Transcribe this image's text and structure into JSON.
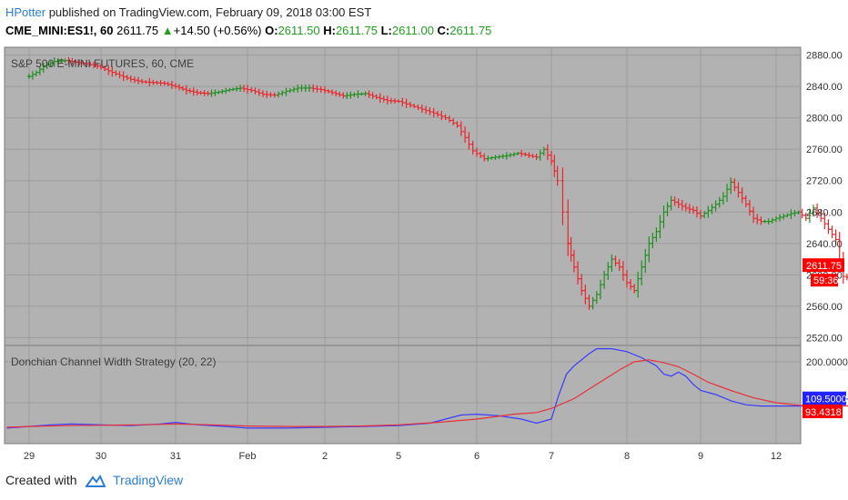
{
  "header": {
    "user": "HPotter",
    "published_text": "published on TradingView.com, February 09, 2018 03:00 EST"
  },
  "symbol_line": {
    "symbol": "CME_MINI:ES1!, 60",
    "last": "2611.75",
    "change_arrow": "▲",
    "change": "+14.50 (+0.56%)",
    "o_label": "O:",
    "o_value": "2611.50",
    "h_label": "H:",
    "h_value": "2611.75",
    "l_label": "L:",
    "l_value": "2611.00",
    "c_label": "C:",
    "c_value": "2611.75"
  },
  "footer": {
    "created_with": "Created with",
    "brand": "TradingView"
  },
  "colors": {
    "up": "#1f8f1f",
    "down": "#e8262a",
    "pane_bg": "#b2b2b2",
    "grid": "#9c9c9c",
    "width_line": "#3b3bff",
    "avg_line": "#e8303a",
    "price_tag": "#ff0000",
    "width_tag": "#2323ff"
  },
  "chart_data": [
    {
      "type": "ohlc",
      "title": "S&P 500 E-MINI FUTURES, 60, CME",
      "y_ticks": [
        "2880.00",
        "2840.00",
        "2800.00",
        "2760.00",
        "2720.00",
        "2680.00",
        "2640.00",
        "2600.00",
        "2560.00",
        "2520.00"
      ],
      "ylim": [
        2510,
        2890
      ],
      "last_price_label": "2611.75",
      "countdown_label": "59:36",
      "close_series": [
        [
          29.0,
          2853
        ],
        [
          29.1,
          2858
        ],
        [
          29.2,
          2866
        ],
        [
          29.35,
          2872
        ],
        [
          29.5,
          2873
        ],
        [
          29.65,
          2871
        ],
        [
          29.8,
          2869
        ],
        [
          29.95,
          2866
        ],
        [
          30.1,
          2860
        ],
        [
          30.25,
          2854
        ],
        [
          30.4,
          2849
        ],
        [
          30.55,
          2846
        ],
        [
          30.7,
          2845
        ],
        [
          30.85,
          2844
        ],
        [
          31.0,
          2840
        ],
        [
          31.15,
          2835
        ],
        [
          31.3,
          2832
        ],
        [
          31.45,
          2831
        ],
        [
          31.6,
          2833
        ],
        [
          31.75,
          2836
        ],
        [
          31.9,
          2838
        ],
        [
          32.05,
          2835
        ],
        [
          32.2,
          2830
        ],
        [
          32.35,
          2829
        ],
        [
          32.5,
          2834
        ],
        [
          32.65,
          2838
        ],
        [
          32.8,
          2838
        ],
        [
          32.95,
          2836
        ],
        [
          33.1,
          2832
        ],
        [
          33.25,
          2828
        ],
        [
          33.4,
          2830
        ],
        [
          33.55,
          2831
        ],
        [
          33.7,
          2826
        ],
        [
          33.85,
          2822
        ],
        [
          34.0,
          2821
        ],
        [
          34.15,
          2816
        ],
        [
          34.3,
          2811
        ],
        [
          34.45,
          2806
        ],
        [
          34.6,
          2800
        ],
        [
          34.75,
          2790
        ],
        [
          34.85,
          2775
        ],
        [
          34.95,
          2758
        ],
        [
          35.1,
          2748
        ],
        [
          35.25,
          2750
        ],
        [
          35.4,
          2752
        ],
        [
          35.55,
          2755
        ],
        [
          35.7,
          2752
        ],
        [
          35.8,
          2750
        ],
        [
          35.9,
          2760
        ],
        [
          36.0,
          2745
        ],
        [
          36.08,
          2720
        ],
        [
          36.15,
          2680
        ],
        [
          36.22,
          2640
        ],
        [
          36.3,
          2610
        ],
        [
          36.4,
          2580
        ],
        [
          36.5,
          2560
        ],
        [
          36.6,
          2575
        ],
        [
          36.7,
          2600
        ],
        [
          36.8,
          2620
        ],
        [
          36.9,
          2610
        ],
        [
          37.0,
          2590
        ],
        [
          37.1,
          2580
        ],
        [
          37.2,
          2610
        ],
        [
          37.3,
          2640
        ],
        [
          37.4,
          2655
        ],
        [
          37.5,
          2680
        ],
        [
          37.6,
          2695
        ],
        [
          37.7,
          2690
        ],
        [
          37.8,
          2685
        ],
        [
          37.9,
          2682
        ],
        [
          38.0,
          2675
        ],
        [
          38.1,
          2682
        ],
        [
          38.2,
          2690
        ],
        [
          38.3,
          2700
        ],
        [
          38.4,
          2718
        ],
        [
          38.5,
          2705
        ],
        [
          38.6,
          2690
        ],
        [
          38.7,
          2672
        ],
        [
          38.8,
          2668
        ],
        [
          38.9,
          2668
        ],
        [
          39.0,
          2672
        ],
        [
          39.1,
          2675
        ],
        [
          39.2,
          2678
        ],
        [
          39.3,
          2680
        ],
        [
          39.4,
          2672
        ],
        [
          39.5,
          2685
        ],
        [
          39.6,
          2672
        ],
        [
          39.7,
          2658
        ],
        [
          39.8,
          2645
        ],
        [
          39.85,
          2620
        ],
        [
          39.9,
          2598
        ],
        [
          40.0,
          2595
        ],
        [
          40.1,
          2598
        ],
        [
          40.2,
          2603
        ],
        [
          40.3,
          2607
        ],
        [
          40.4,
          2611.75
        ]
      ]
    },
    {
      "type": "line",
      "title": "Donchian Channel Width Strategy (20, 22)",
      "y_ticks": [
        "200.0000"
      ],
      "ylim": [
        0,
        240
      ],
      "width_label": "109.5000",
      "average_label": "93.4318",
      "series": [
        {
          "values": [
            [
              28.7,
              38
            ],
            [
              29.0,
              42
            ],
            [
              29.3,
              46
            ],
            [
              29.6,
              48
            ],
            [
              30.0,
              46
            ],
            [
              30.4,
              44
            ],
            [
              30.8,
              48
            ],
            [
              31.0,
              52
            ],
            [
              31.3,
              46
            ],
            [
              31.7,
              42
            ],
            [
              32.0,
              38
            ],
            [
              32.5,
              38
            ],
            [
              33.0,
              40
            ],
            [
              33.5,
              42
            ],
            [
              34.0,
              44
            ],
            [
              34.4,
              50
            ],
            [
              34.6,
              60
            ],
            [
              34.8,
              70
            ],
            [
              35.0,
              72
            ],
            [
              35.3,
              68
            ],
            [
              35.6,
              60
            ],
            [
              35.8,
              50
            ],
            [
              36.0,
              60
            ],
            [
              36.1,
              120
            ],
            [
              36.2,
              170
            ],
            [
              36.3,
              190
            ],
            [
              36.4,
              205
            ],
            [
              36.5,
              220
            ],
            [
              36.6,
              232
            ],
            [
              36.8,
              232
            ],
            [
              37.0,
              225
            ],
            [
              37.2,
              210
            ],
            [
              37.4,
              190
            ],
            [
              37.5,
              170
            ],
            [
              37.6,
              165
            ],
            [
              37.7,
              175
            ],
            [
              37.8,
              165
            ],
            [
              37.9,
              145
            ],
            [
              38.0,
              130
            ],
            [
              38.2,
              120
            ],
            [
              38.4,
              105
            ],
            [
              38.6,
              95
            ],
            [
              38.8,
              92
            ],
            [
              39.0,
              92
            ],
            [
              39.3,
              92
            ],
            [
              39.6,
              92
            ],
            [
              39.8,
              94
            ],
            [
              39.9,
              108
            ],
            [
              40.0,
              110
            ],
            [
              40.4,
              109.5
            ]
          ]
        },
        {
          "values": [
            [
              28.7,
              40
            ],
            [
              29.0,
              42
            ],
            [
              29.5,
              44
            ],
            [
              30.0,
              45
            ],
            [
              30.5,
              46
            ],
            [
              31.0,
              48
            ],
            [
              31.5,
              46
            ],
            [
              32.0,
              43
            ],
            [
              32.5,
              42
            ],
            [
              33.0,
              42
            ],
            [
              33.5,
              43
            ],
            [
              34.0,
              46
            ],
            [
              34.5,
              52
            ],
            [
              35.0,
              60
            ],
            [
              35.5,
              72
            ],
            [
              35.8,
              76
            ],
            [
              36.0,
              86
            ],
            [
              36.3,
              110
            ],
            [
              36.6,
              145
            ],
            [
              36.9,
              180
            ],
            [
              37.1,
              200
            ],
            [
              37.3,
              205
            ],
            [
              37.5,
              198
            ],
            [
              37.7,
              188
            ],
            [
              37.9,
              170
            ],
            [
              38.1,
              150
            ],
            [
              38.4,
              130
            ],
            [
              38.7,
              112
            ],
            [
              39.0,
              100
            ],
            [
              39.3,
              94
            ],
            [
              39.6,
              90
            ],
            [
              39.9,
              92
            ],
            [
              40.4,
              93.43
            ]
          ]
        }
      ]
    }
  ],
  "x_ticks": [
    "29",
    "30",
    "31",
    "Feb",
    "2",
    "5",
    "6",
    "7",
    "8",
    "9",
    "12"
  ]
}
